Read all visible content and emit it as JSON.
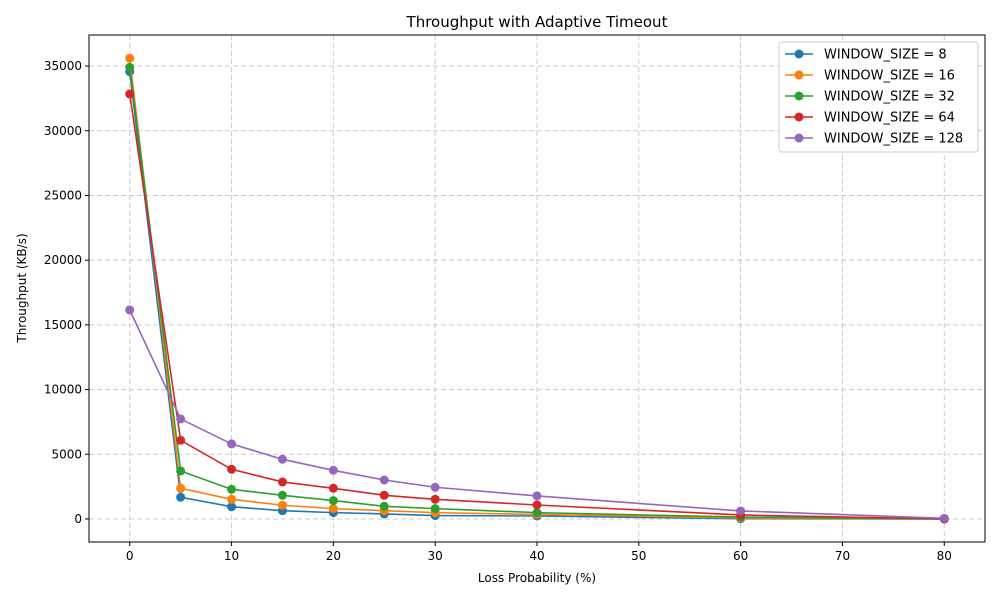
{
  "chart_data": {
    "type": "line",
    "title": "Throughput with Adaptive Timeout",
    "xlabel": "Loss Probability (%)",
    "ylabel": "Throughput (KB/s)",
    "xlim": [
      -4,
      84
    ],
    "ylim": [
      -1780,
      37400
    ],
    "xticks": [
      0,
      10,
      20,
      30,
      40,
      50,
      60,
      70,
      80
    ],
    "yticks": [
      0,
      5000,
      10000,
      15000,
      20000,
      25000,
      30000,
      35000
    ],
    "grid": true,
    "legend_position": "top-right",
    "x": [
      0,
      5,
      10,
      15,
      20,
      25,
      30,
      40,
      60,
      80
    ],
    "series": [
      {
        "name": "WINDOW_SIZE = 8",
        "color": "#1f77b4",
        "values": [
          34570,
          1680,
          950,
          640,
          490,
          390,
          260,
          230,
          20,
          0
        ]
      },
      {
        "name": "WINDOW_SIZE = 16",
        "color": "#ff7f0e",
        "values": [
          35600,
          2370,
          1520,
          1060,
          800,
          640,
          490,
          350,
          80,
          0
        ]
      },
      {
        "name": "WINDOW_SIZE = 32",
        "color": "#2ca02c",
        "values": [
          34900,
          3710,
          2290,
          1830,
          1420,
          980,
          800,
          490,
          150,
          0
        ]
      },
      {
        "name": "WINDOW_SIZE = 64",
        "color": "#d62728",
        "values": [
          32840,
          6080,
          3840,
          2860,
          2370,
          1830,
          1520,
          1080,
          310,
          0
        ]
      },
      {
        "name": "WINDOW_SIZE = 128",
        "color": "#9467bd",
        "values": [
          16150,
          7730,
          5800,
          4610,
          3760,
          3010,
          2450,
          1780,
          620,
          50
        ]
      }
    ]
  }
}
